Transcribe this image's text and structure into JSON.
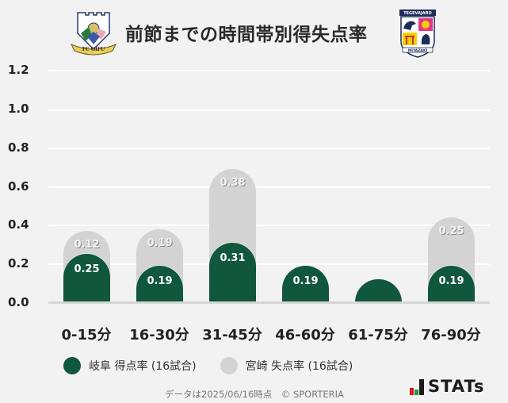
{
  "header": {
    "title": "前節までの時間帯別得失点率",
    "home_logo": "fc-gifu-crest",
    "away_logo": "tegevajaro-miyazaki-crest",
    "home_logo_text": "FC GIFU",
    "away_logo_text_top": "TEGEVAJARO",
    "away_logo_text_bottom": "MIYAZAKI"
  },
  "chart_data": {
    "type": "bar",
    "stacked": true,
    "title": "前節までの時間帯別得失点率",
    "categories": [
      "0-15分",
      "16-30分",
      "31-45分",
      "46-60分",
      "61-75分",
      "76-90分"
    ],
    "series": [
      {
        "name": "岐阜 得点率 (16試合)",
        "color": "#10573d",
        "values": [
          0.25,
          0.19,
          0.31,
          0.19,
          0.0,
          0.19
        ],
        "labels": [
          "0.25",
          "0.19",
          "0.31",
          "0.19",
          "",
          "0.19"
        ]
      },
      {
        "name": "宮崎 失点率 (16試合)",
        "color": "#d3d3d3",
        "values": [
          0.12,
          0.19,
          0.38,
          0.0,
          0.0,
          0.25
        ],
        "labels": [
          "0.12",
          "0.19",
          "0.38",
          "",
          "",
          "0.25"
        ]
      }
    ],
    "xlabel": "",
    "ylabel": "",
    "ylim": [
      0,
      1.2
    ],
    "yticks": [
      "0.0",
      "0.2",
      "0.4",
      "0.6",
      "0.8",
      "1.0",
      "1.2"
    ],
    "grid": true,
    "legend_position": "bottom"
  },
  "legend": {
    "items": [
      {
        "label": "岐阜 得点率 (16試合)",
        "color": "#10573d"
      },
      {
        "label": "宮崎 失点率 (16試合)",
        "color": "#d3d3d3"
      }
    ]
  },
  "footer": {
    "note": "データは2025/06/16時点　© SPORTERIA",
    "brand": "STATs",
    "brand_colors": [
      "#d7191f",
      "#1f9a3b",
      "#1a1a1a"
    ]
  }
}
